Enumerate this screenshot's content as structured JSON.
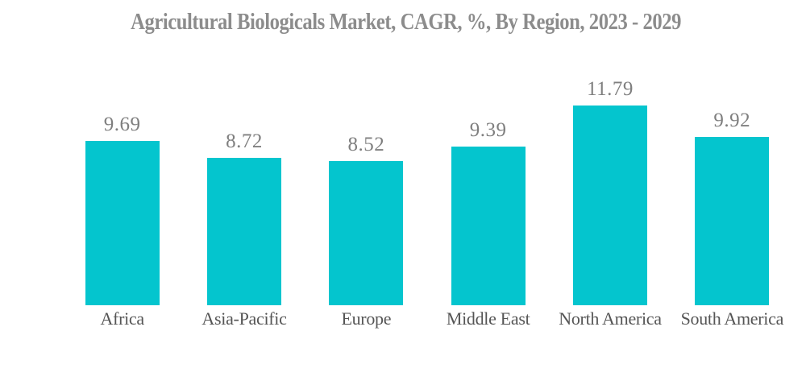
{
  "chart_data": {
    "type": "bar",
    "title": "Agricultural Biologicals Market, CAGR, %, By Region, 2023 - 2029",
    "categories": [
      "Africa",
      "Asia-Pacific",
      "Europe",
      "Middle East",
      "North America",
      "South America"
    ],
    "values": [
      9.69,
      8.72,
      8.52,
      9.39,
      11.79,
      9.92
    ],
    "value_labels": [
      "9.69",
      "8.72",
      "8.52",
      "9.39",
      "11.79",
      "9.92"
    ],
    "xlabel": "",
    "ylabel": "",
    "ylim": [
      0,
      12
    ],
    "grid": false,
    "axes_visible": false,
    "legend": "none",
    "colors": {
      "bar": "#04C5CE",
      "title": "#8C8C8C",
      "value_label": "#7F7F7F",
      "category_label": "#555555",
      "background": "#FFFFFF"
    }
  }
}
